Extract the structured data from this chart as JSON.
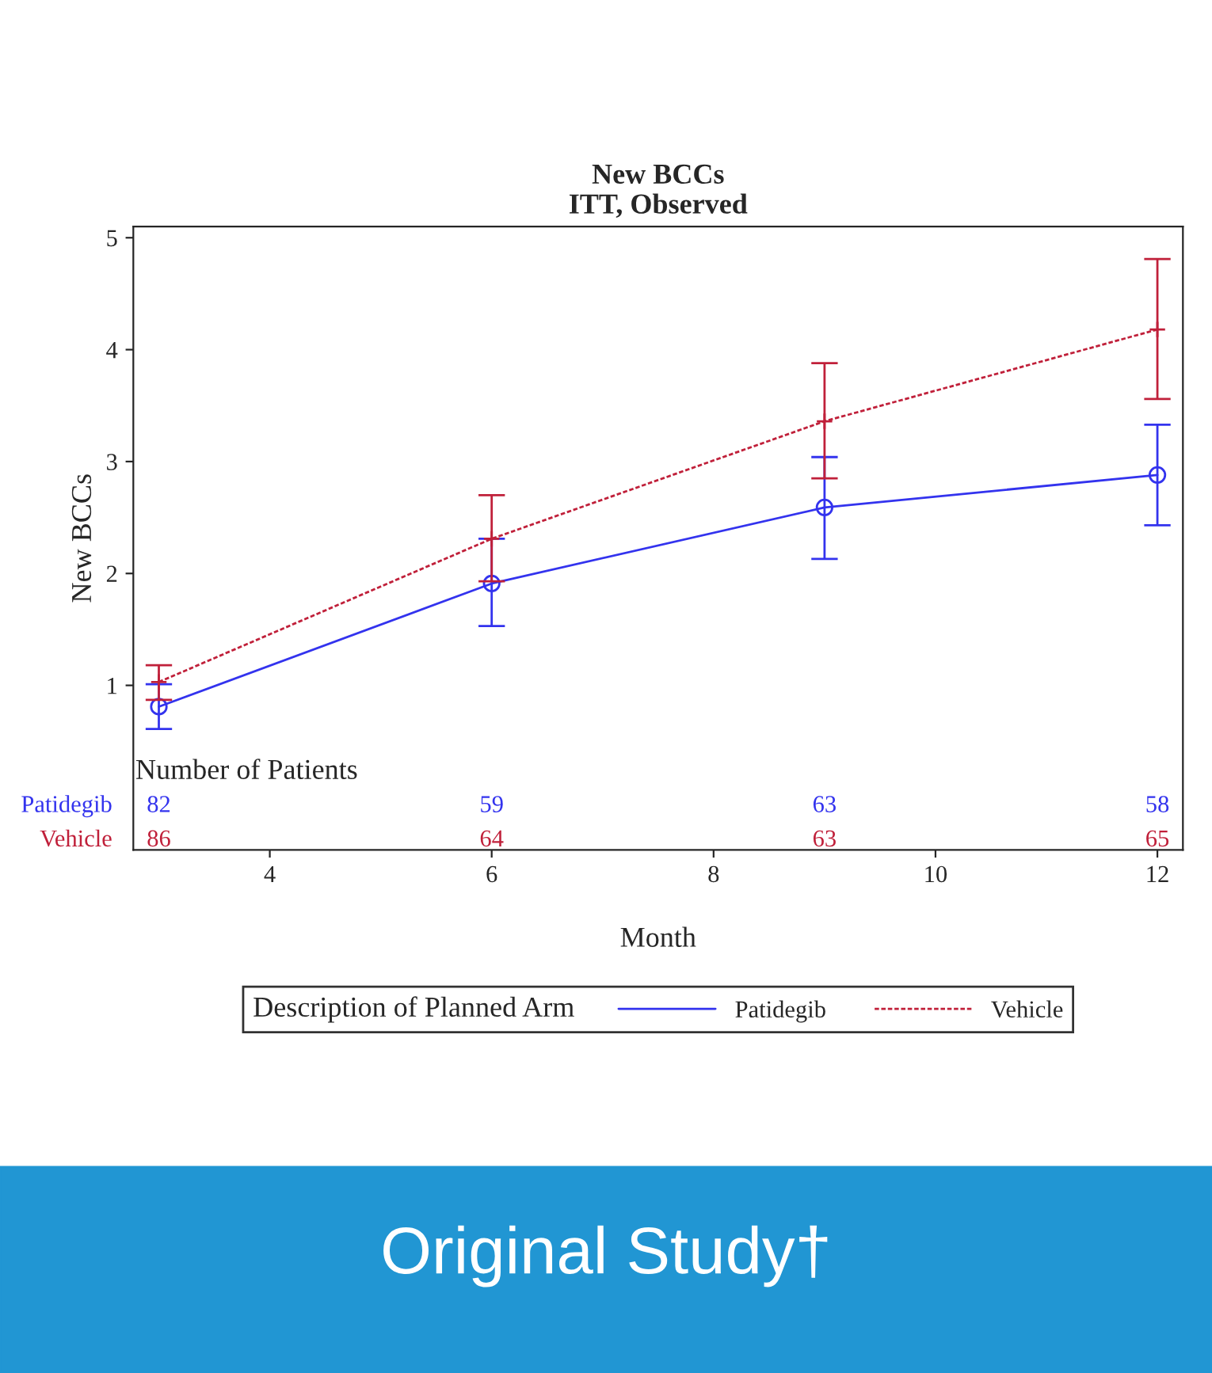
{
  "chart_data": {
    "type": "line",
    "title": "New BCCs\nITT, Observed",
    "xlabel": "Month",
    "ylabel": "New BCCs",
    "legend_title": "Description of Planned Arm",
    "x": [
      3,
      6,
      9,
      12
    ],
    "series": [
      {
        "name": "Patidegib",
        "color": "#3333ee",
        "values": [
          0.81,
          1.91,
          2.59,
          2.88
        ],
        "errors": [
          [
            0.61,
            1.01
          ],
          [
            1.53,
            2.31
          ],
          [
            2.13,
            3.04
          ],
          [
            2.43,
            3.33
          ]
        ],
        "marker": "circle",
        "line_style": "solid"
      },
      {
        "name": "Vehicle",
        "color": "#c0203a",
        "values": [
          1.03,
          2.31,
          3.36,
          4.18
        ],
        "errors": [
          [
            0.87,
            1.18
          ],
          [
            1.93,
            2.7
          ],
          [
            2.85,
            3.88
          ],
          [
            3.56,
            4.81
          ]
        ],
        "marker": "cross",
        "line_style": "dashed"
      }
    ],
    "xlim": [
      2.77,
      12.23
    ],
    "xticks": [
      4,
      6,
      8,
      10,
      12
    ],
    "ylim": [
      -0.47,
      5.1
    ],
    "yticks": [
      1,
      2,
      3,
      4,
      5
    ],
    "grid": false,
    "legend": "bottom",
    "annotations": [
      "Number of Patients",
      "82",
      "59",
      "63",
      "58",
      "86",
      "64",
      "63",
      "65",
      "Original Study†"
    ]
  }
}
